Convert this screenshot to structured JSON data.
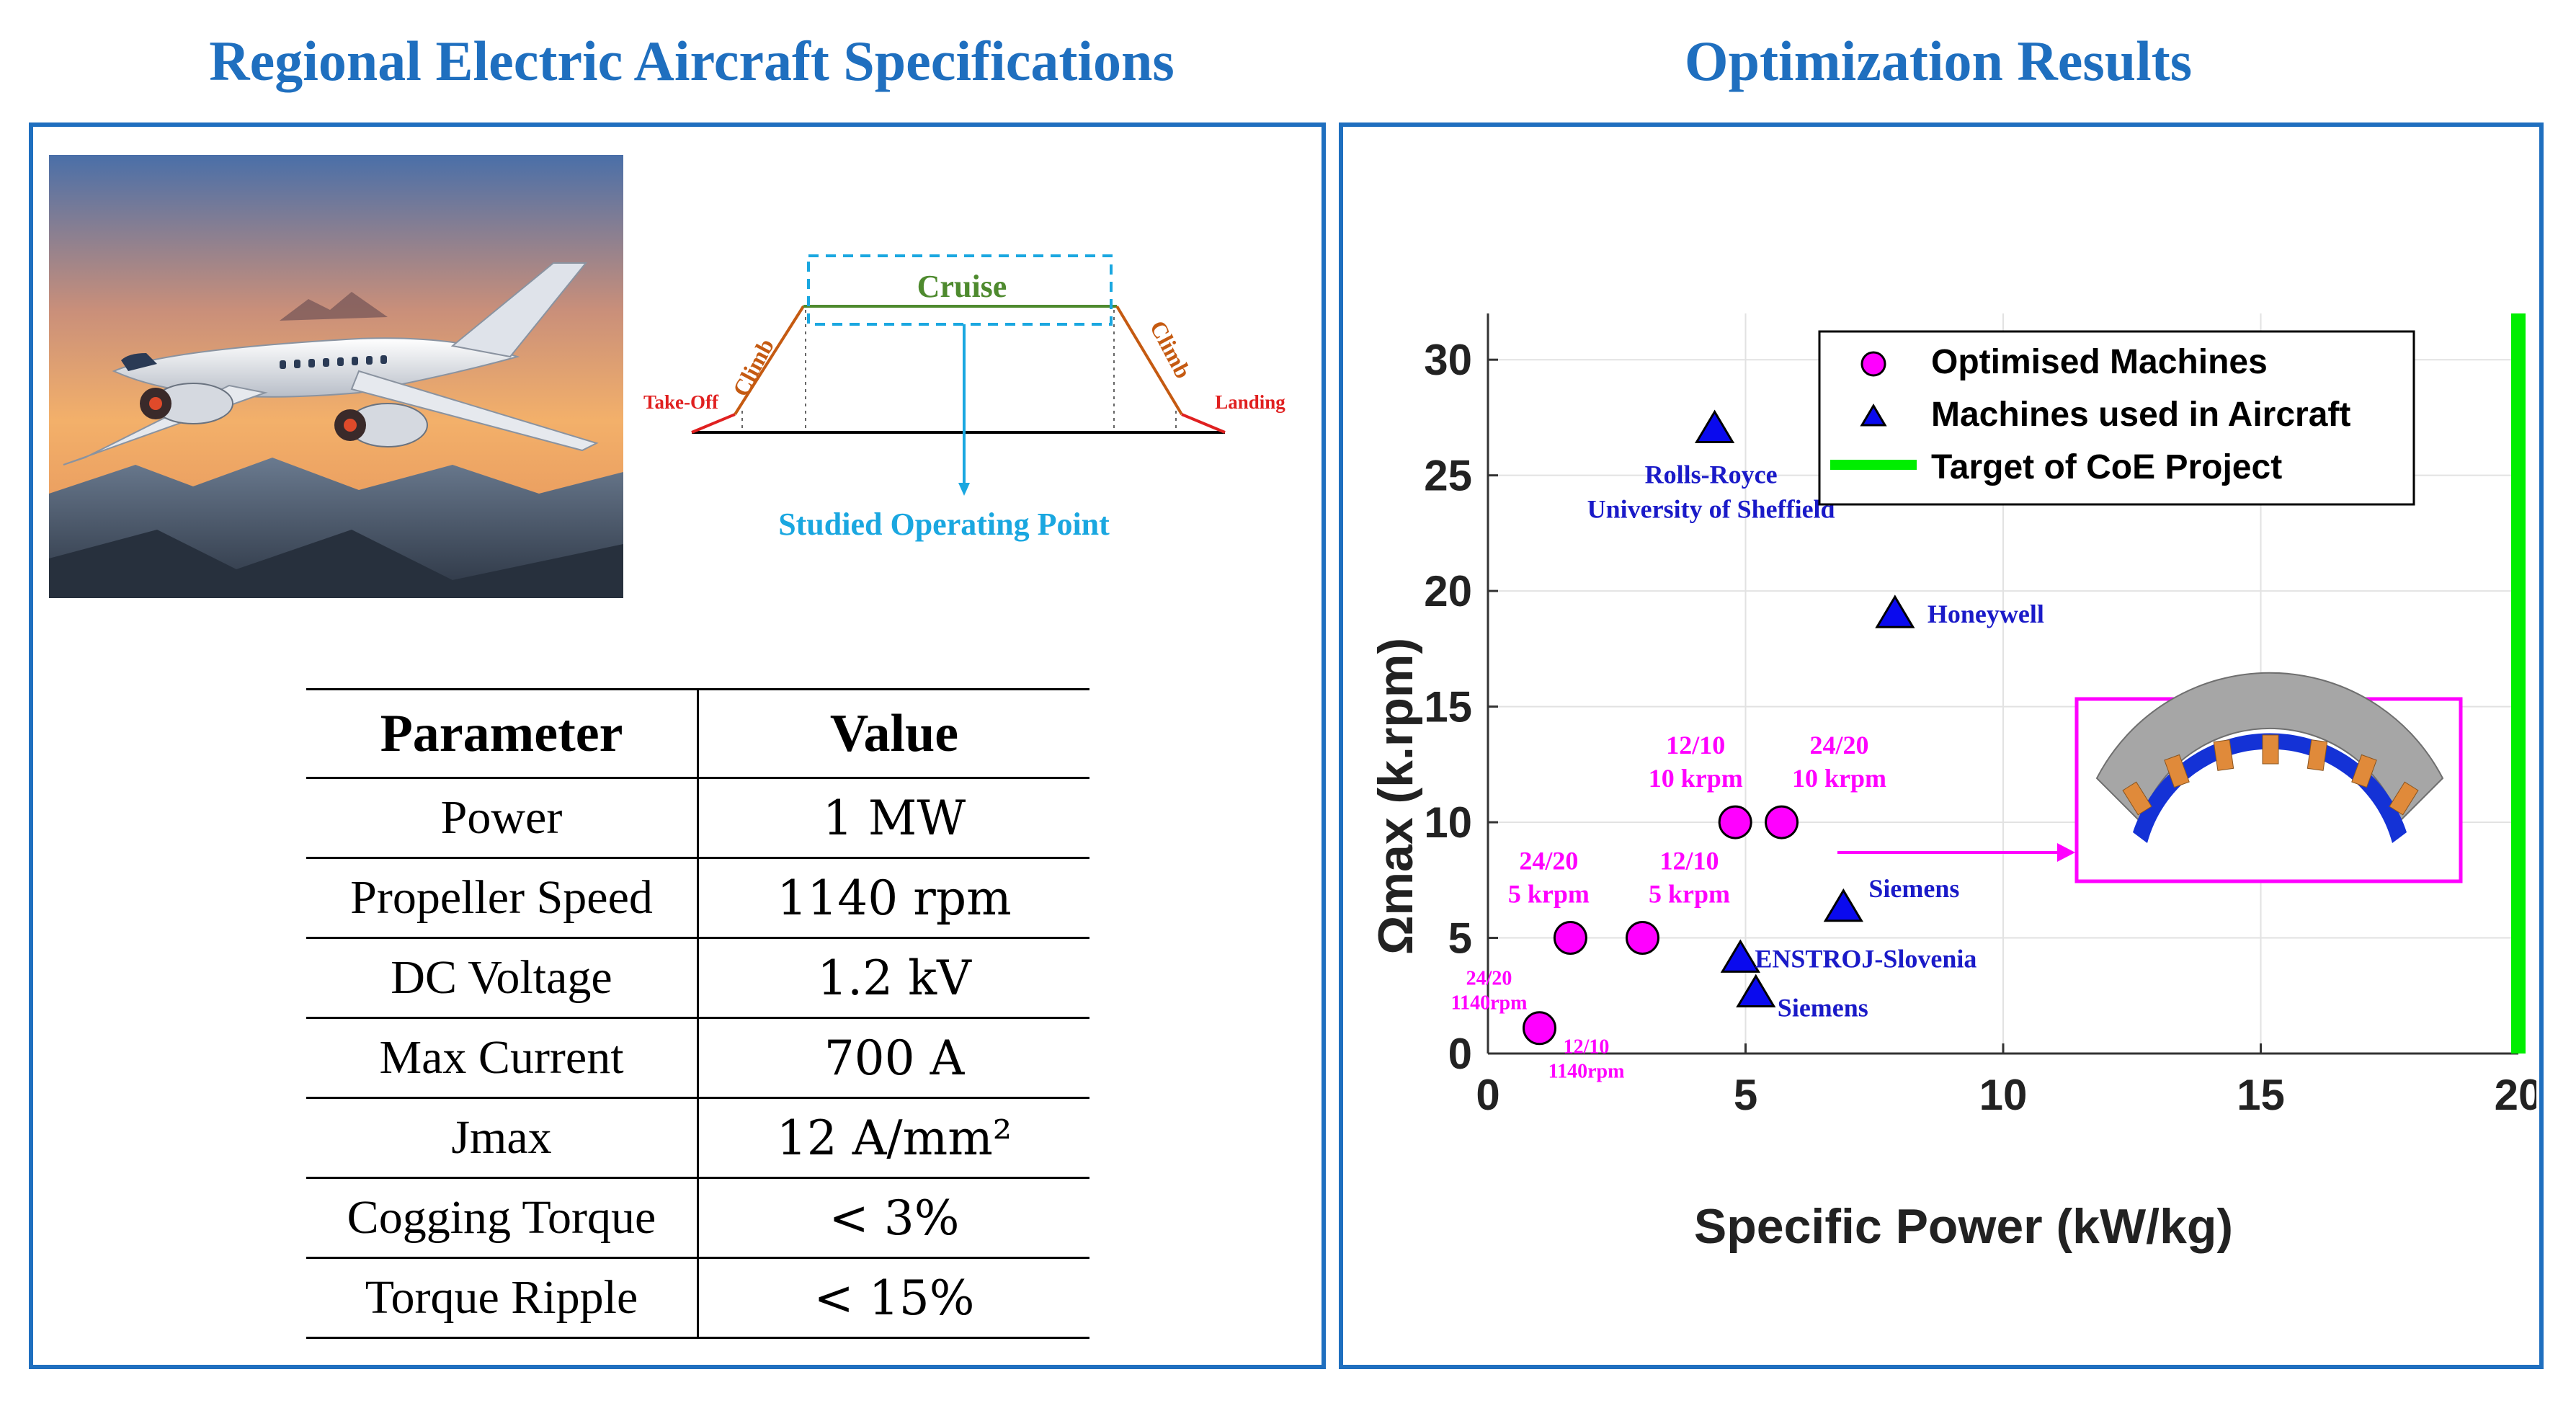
{
  "headings": {
    "left": "Regional Electric Aircraft Specifications",
    "right": "Optimization Results"
  },
  "flight_profile": {
    "cruise": "Cruise",
    "climb_left": "Climb",
    "climb_right": "Climb",
    "takeoff": "Take-Off",
    "landing": "Landing",
    "studied_point": "Studied Operating Point",
    "colors": {
      "cruise": "#4e8a2e",
      "climb": "#c55a11",
      "edge": "#e02020",
      "studied": "#1aa7e0"
    }
  },
  "spec_table": {
    "header": {
      "param": "Parameter",
      "value": "Value"
    },
    "rows": [
      {
        "param": "Power",
        "value": "1 MW"
      },
      {
        "param": "Propeller Speed",
        "value": "1140 rpm"
      },
      {
        "param": "DC Voltage",
        "value": "1.2 kV"
      },
      {
        "param": "Max Current",
        "value": "700 A"
      },
      {
        "param": "Jmax",
        "value": "12 A/mm²"
      },
      {
        "param": "Cogging Torque",
        "value": "< 3%"
      },
      {
        "param": "Torque Ripple",
        "value": "< 15%"
      }
    ]
  },
  "chart_data": {
    "type": "scatter",
    "xlabel": "Specific Power (kW/kg)",
    "ylabel": "Ωmax (k.rpm)",
    "xlim": [
      0,
      20
    ],
    "ylim": [
      0,
      32
    ],
    "xticks": [
      0,
      5,
      10,
      15,
      20
    ],
    "yticks": [
      0,
      5,
      10,
      15,
      20,
      25,
      30
    ],
    "grid": true,
    "legend_position": "top-right",
    "series": [
      {
        "name": "Optimised Machines",
        "marker": "circle",
        "color": "#ff00ff",
        "points": [
          {
            "x": 1.0,
            "y": 1.1,
            "label": [
              "24/20",
              "1140rpm"
            ]
          },
          {
            "x": 1.0,
            "y": 1.1,
            "label": [
              "12/10",
              "1140rpm"
            ]
          },
          {
            "x": 1.6,
            "y": 5.0,
            "label": [
              "24/20",
              "5 krpm"
            ]
          },
          {
            "x": 3.0,
            "y": 5.0,
            "label": [
              "12/10",
              "5 krpm"
            ]
          },
          {
            "x": 4.8,
            "y": 10.0,
            "label": [
              "12/10",
              "10 krpm"
            ]
          },
          {
            "x": 5.7,
            "y": 10.0,
            "label": [
              "24/20",
              "10 krpm"
            ]
          }
        ]
      },
      {
        "name": "Machines used in Aircraft",
        "marker": "triangle",
        "color": "#0a0aee",
        "points": [
          {
            "x": 4.4,
            "y": 27.0,
            "label": [
              "Rolls-Royce",
              "University of Sheffield"
            ]
          },
          {
            "x": 7.9,
            "y": 19.0,
            "label": [
              "Honeywell"
            ]
          },
          {
            "x": 6.9,
            "y": 6.3,
            "label": [
              "Siemens"
            ]
          },
          {
            "x": 4.9,
            "y": 4.1,
            "label": [
              "ENSTROJ-Slovenia"
            ]
          },
          {
            "x": 5.2,
            "y": 2.6,
            "label": [
              "Siemens"
            ]
          }
        ]
      },
      {
        "name": "Target of CoE Project",
        "marker": "line",
        "color": "#00ee00",
        "x": 20,
        "y_range": [
          0,
          32
        ]
      }
    ]
  }
}
